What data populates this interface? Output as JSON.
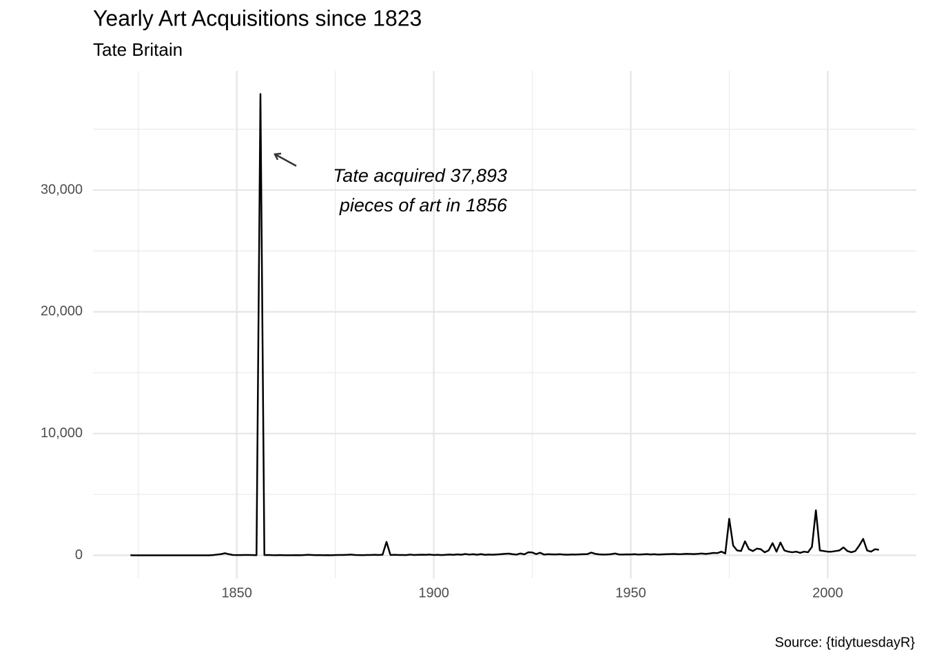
{
  "chart_data": {
    "type": "line",
    "title": "Yearly Art Acquisitions since 1823",
    "subtitle": "Tate Britain",
    "caption": "Source: {tidytuesdayR}",
    "annotation": [
      "Tate acquired 37,893",
      "pieces of art in 1856"
    ],
    "x": [
      1823,
      1824,
      1825,
      1826,
      1827,
      1828,
      1829,
      1830,
      1831,
      1832,
      1833,
      1834,
      1835,
      1836,
      1837,
      1838,
      1839,
      1840,
      1841,
      1842,
      1843,
      1844,
      1845,
      1846,
      1847,
      1848,
      1849,
      1850,
      1851,
      1852,
      1853,
      1854,
      1855,
      1856,
      1857,
      1858,
      1859,
      1860,
      1861,
      1862,
      1863,
      1864,
      1865,
      1866,
      1867,
      1868,
      1869,
      1870,
      1871,
      1872,
      1873,
      1874,
      1875,
      1876,
      1877,
      1878,
      1879,
      1880,
      1881,
      1882,
      1883,
      1884,
      1885,
      1886,
      1887,
      1888,
      1889,
      1890,
      1891,
      1892,
      1893,
      1894,
      1895,
      1896,
      1897,
      1898,
      1899,
      1900,
      1901,
      1902,
      1903,
      1904,
      1905,
      1906,
      1907,
      1908,
      1909,
      1910,
      1911,
      1912,
      1913,
      1914,
      1915,
      1916,
      1917,
      1918,
      1919,
      1920,
      1921,
      1922,
      1923,
      1924,
      1925,
      1926,
      1927,
      1928,
      1929,
      1930,
      1931,
      1932,
      1933,
      1934,
      1935,
      1936,
      1937,
      1938,
      1939,
      1940,
      1941,
      1942,
      1943,
      1944,
      1945,
      1946,
      1947,
      1948,
      1949,
      1950,
      1951,
      1952,
      1953,
      1954,
      1955,
      1956,
      1957,
      1958,
      1959,
      1960,
      1961,
      1962,
      1963,
      1964,
      1965,
      1966,
      1967,
      1968,
      1969,
      1970,
      1971,
      1972,
      1973,
      1974,
      1975,
      1976,
      1977,
      1978,
      1979,
      1980,
      1981,
      1982,
      1983,
      1984,
      1985,
      1986,
      1987,
      1988,
      1989,
      1990,
      1991,
      1992,
      1993,
      1994,
      1995,
      1996,
      1997,
      1998,
      1999,
      2000,
      2001,
      2002,
      2003,
      2004,
      2005,
      2006,
      2007,
      2008,
      2009,
      2010,
      2011,
      2012,
      2013
    ],
    "series": [
      {
        "color": "#000000",
        "values": [
          5,
          0,
          0,
          2,
          0,
          0,
          0,
          0,
          0,
          0,
          0,
          0,
          0,
          0,
          0,
          0,
          0,
          0,
          0,
          0,
          0,
          20,
          60,
          100,
          170,
          90,
          30,
          20,
          20,
          30,
          30,
          20,
          10,
          37893,
          20,
          30,
          15,
          10,
          20,
          10,
          10,
          10,
          15,
          10,
          20,
          40,
          25,
          15,
          20,
          10,
          15,
          10,
          20,
          25,
          30,
          40,
          60,
          30,
          20,
          15,
          25,
          30,
          40,
          30,
          50,
          1100,
          30,
          40,
          30,
          30,
          20,
          60,
          30,
          40,
          50,
          40,
          60,
          30,
          40,
          20,
          40,
          60,
          40,
          80,
          50,
          110,
          60,
          90,
          50,
          100,
          40,
          60,
          50,
          70,
          90,
          120,
          140,
          90,
          60,
          150,
          80,
          250,
          230,
          100,
          210,
          60,
          90,
          80,
          70,
          90,
          60,
          50,
          70,
          60,
          80,
          90,
          100,
          220,
          120,
          80,
          60,
          70,
          90,
          150,
          70,
          60,
          80,
          70,
          90,
          60,
          80,
          100,
          70,
          90,
          60,
          80,
          90,
          100,
          110,
          90,
          100,
          120,
          110,
          100,
          120,
          150,
          110,
          150,
          200,
          180,
          300,
          150,
          3000,
          800,
          400,
          350,
          1150,
          500,
          350,
          550,
          500,
          250,
          400,
          1000,
          300,
          1050,
          400,
          300,
          250,
          300,
          200,
          300,
          250,
          700,
          3700,
          400,
          350,
          300,
          300,
          350,
          400,
          650,
          350,
          250,
          350,
          800,
          1350,
          400,
          300,
          500,
          450
        ]
      }
    ],
    "xlim": [
      1813.5,
      2022.5
    ],
    "xticks": [
      1850,
      1900,
      1950,
      2000
    ],
    "xminor": [
      1825,
      1875,
      1925,
      1975
    ],
    "ylim": [
      -1895,
      39788
    ],
    "yticks": [
      0,
      {
        "value": 10000,
        "label": "10,000"
      },
      {
        "value": 20000,
        "label": "20,000"
      },
      {
        "value": 30000,
        "label": "30,000"
      }
    ],
    "yminor": [
      5000,
      15000,
      25000,
      35000
    ],
    "grid": true
  }
}
